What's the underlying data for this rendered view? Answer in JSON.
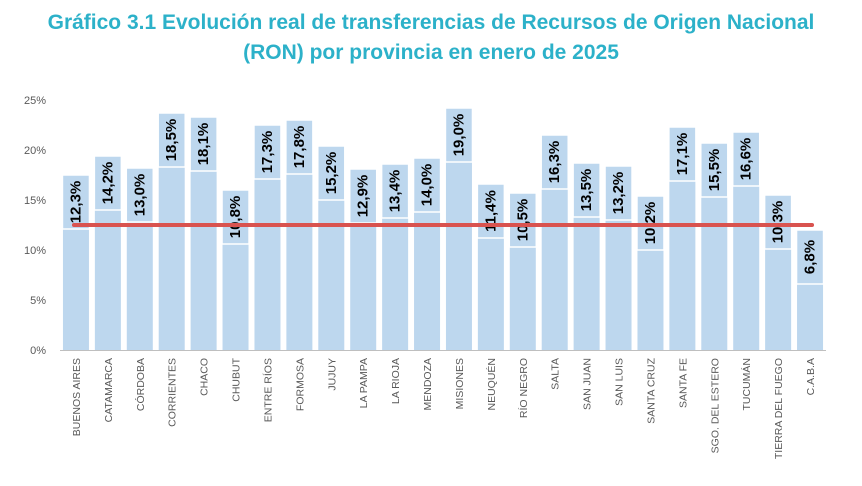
{
  "title": {
    "line1": "Gráfico 3.1 Evolución real de transferencias de Recursos de Origen Nacional",
    "line2": "(RON) por provincia en enero de 2025"
  },
  "colors": {
    "title": "#2CB1C9",
    "bar": "#BDD7EE",
    "reference_line": "#D9534F",
    "axis_text": "#595959",
    "label_text": "#000000"
  },
  "chart_data": {
    "type": "bar",
    "title": "Gráfico 3.1 Evolución real de transferencias de Recursos de Origen Nacional (RON) por provincia en enero de 2025",
    "categories": [
      "BUENOS AIRES",
      "CATAMARCA",
      "CÓRDOBA",
      "CORRIENTES",
      "CHACO",
      "CHUBUT",
      "ENTRE RÍOS",
      "FORMOSA",
      "JUJUY",
      "LA PAMPA",
      "LA RIOJA",
      "MENDOZA",
      "MISIONES",
      "NEUQUÉN",
      "RÍO NEGRO",
      "SALTA",
      "SAN JUAN",
      "SAN LUIS",
      "SANTA CRUZ",
      "SANTA FE",
      "SGO. DEL ESTERO",
      "TUCUMÁN",
      "TIERRA DEL FUEGO",
      "C.A.B.A"
    ],
    "values": [
      12.3,
      14.2,
      13.0,
      18.5,
      18.1,
      10.8,
      17.3,
      17.8,
      15.2,
      12.9,
      13.4,
      14.0,
      19.0,
      11.4,
      10.5,
      16.3,
      13.5,
      13.2,
      10.2,
      17.1,
      15.5,
      16.6,
      10.3,
      6.8
    ],
    "labels": [
      "12,3%",
      "14,2%",
      "13,0%",
      "18,5%",
      "18,1%",
      "10,8%",
      "17,3%",
      "17,8%",
      "15,2%",
      "12,9%",
      "13,4%",
      "14,0%",
      "19,0%",
      "11,4%",
      "10,5%",
      "16,3%",
      "13,5%",
      "13,2%",
      "10,2%",
      "17,1%",
      "15,5%",
      "16,6%",
      "10,3%",
      "6,8%"
    ],
    "reference_line": 12.5,
    "yticks": [
      0,
      5,
      10,
      15,
      20,
      25
    ],
    "ytick_labels": [
      "0%",
      "5%",
      "10%",
      "15%",
      "20%",
      "25%"
    ],
    "ylim": [
      0,
      25
    ],
    "xlabel": "",
    "ylabel": "",
    "grid": false,
    "legend": "none"
  }
}
